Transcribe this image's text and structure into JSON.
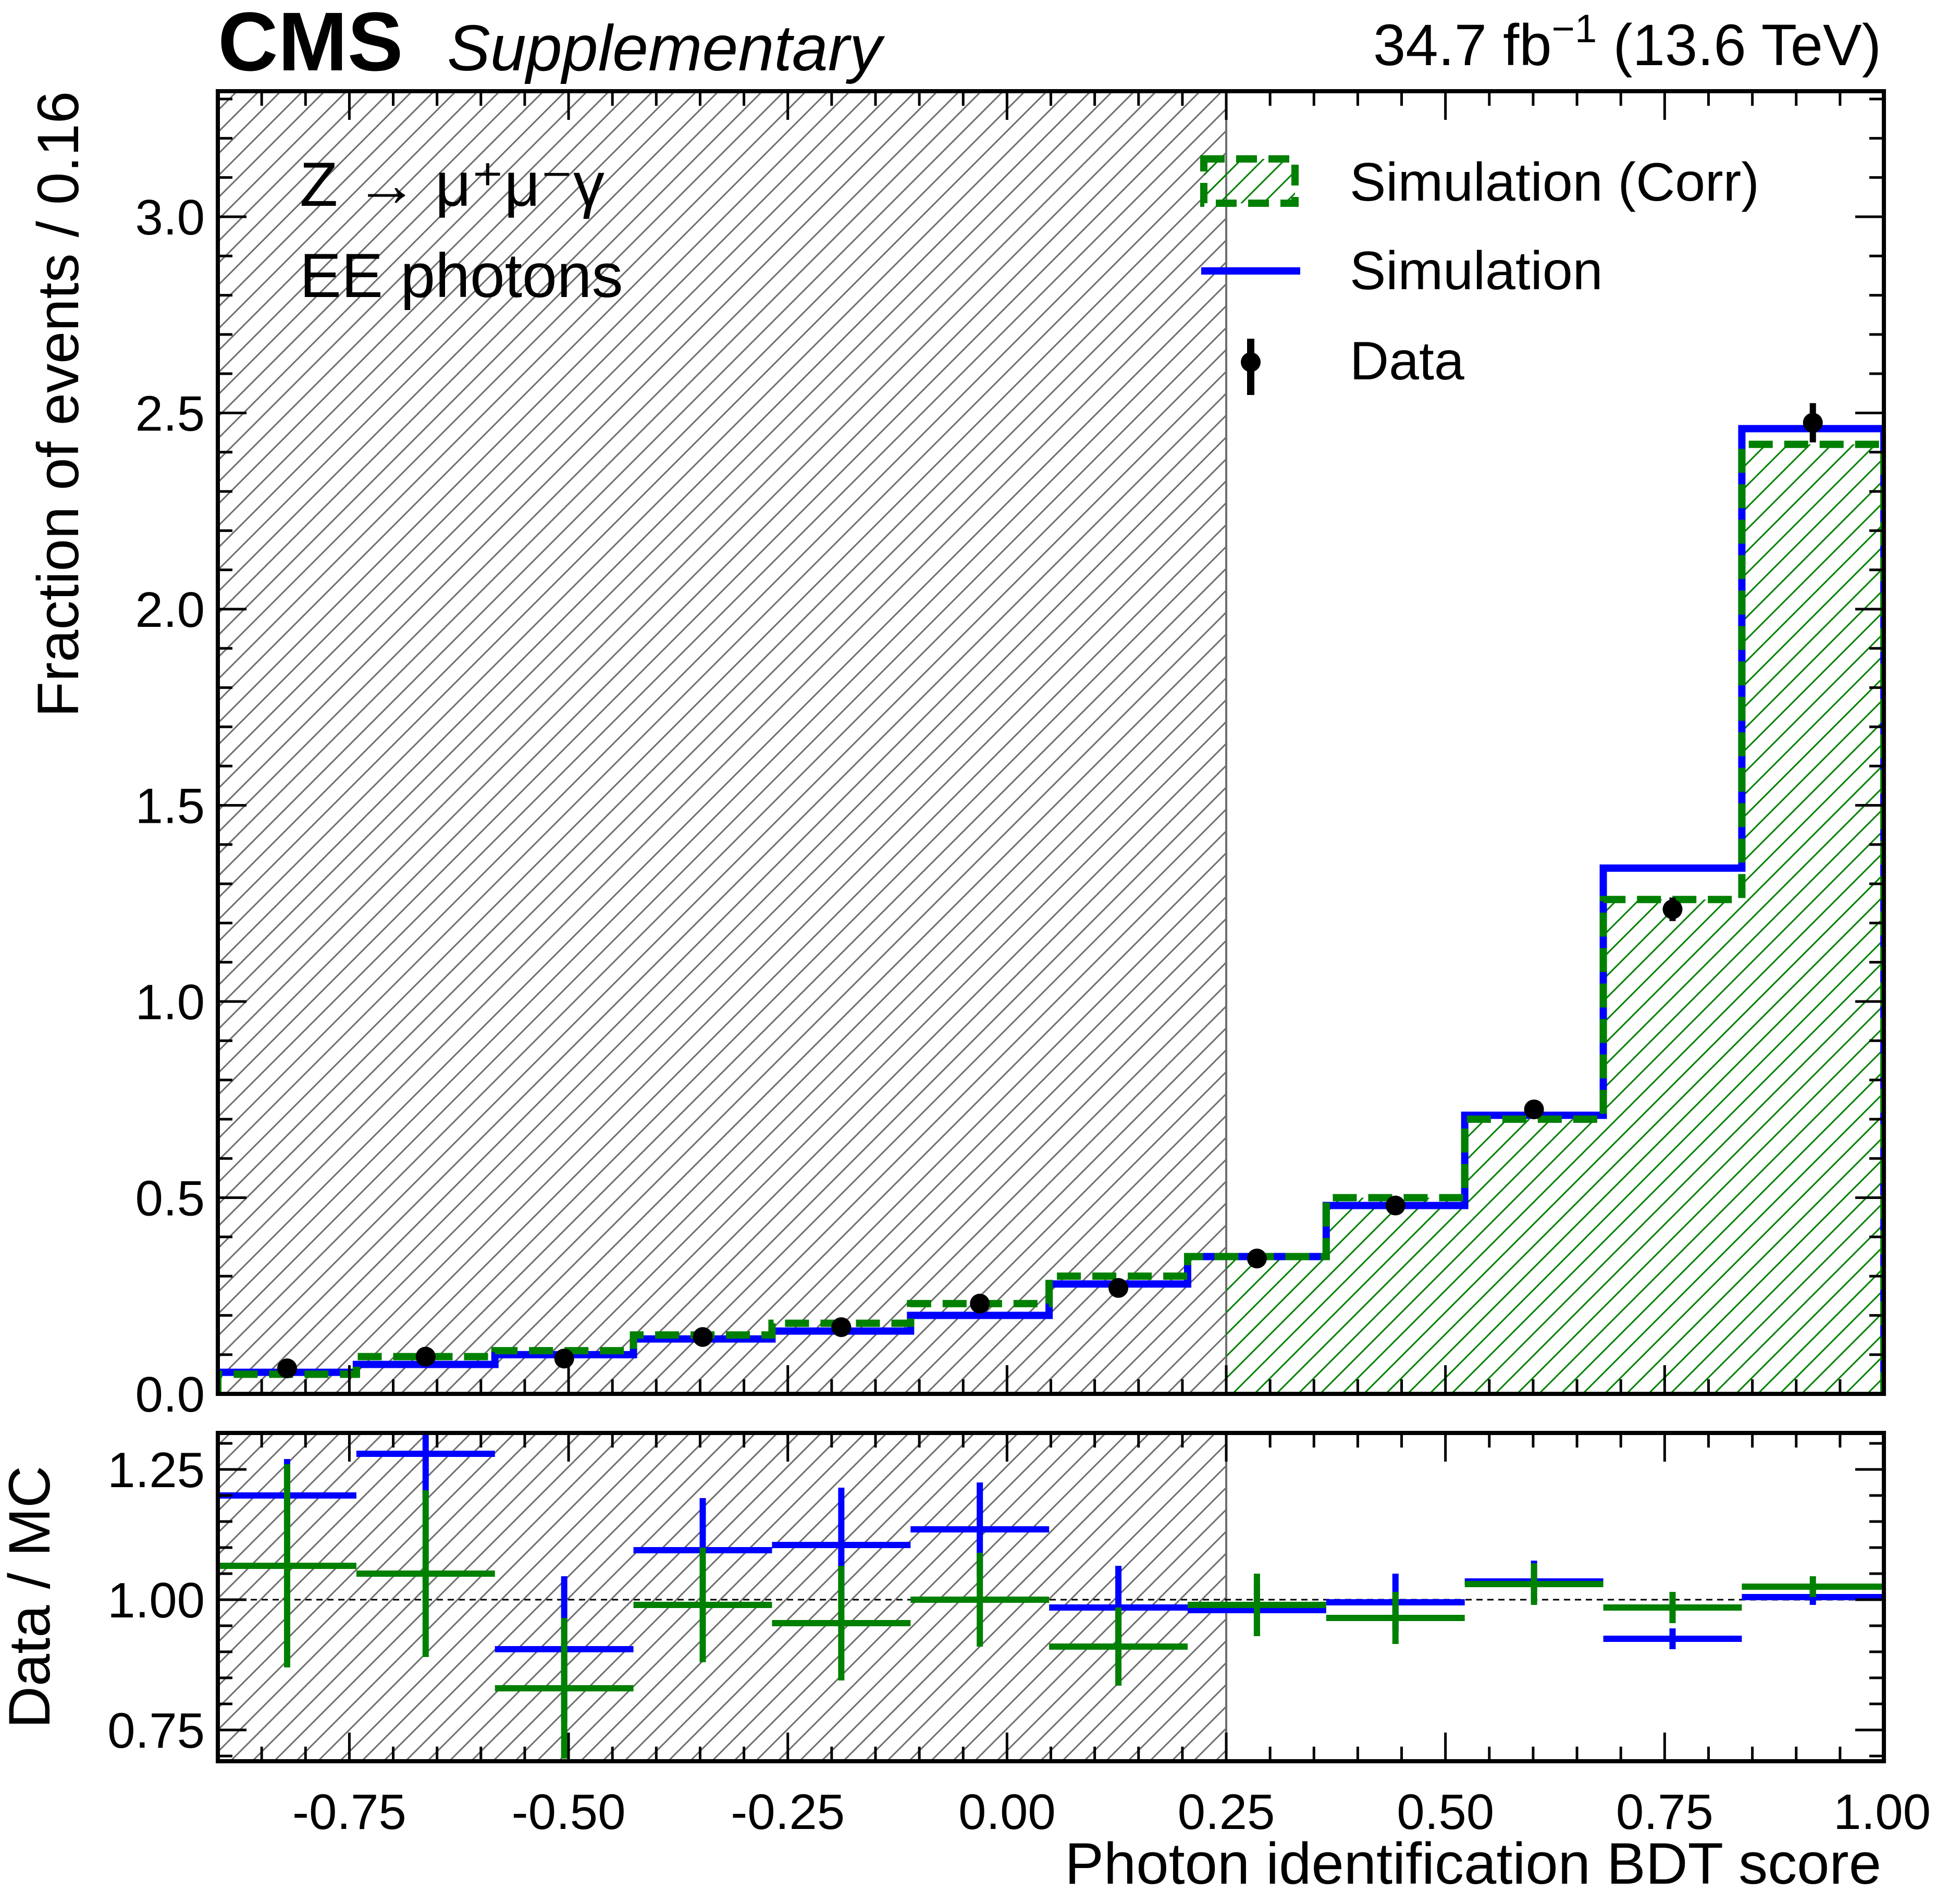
{
  "header": {
    "cms": "CMS",
    "supplementary": "Supplementary",
    "lumi_prefix": "34.7 fb",
    "lumi_sup": "−1",
    "lumi_suffix": " (13.6 TeV)"
  },
  "annotation": {
    "process": "Z → μ⁺μ⁻γ",
    "category": "EE photons"
  },
  "legend": {
    "items": [
      "Simulation (Corr)",
      "Simulation",
      "Data"
    ]
  },
  "colors": {
    "corr": "#008000",
    "sim": "#0000ff",
    "data": "#000000",
    "hatch_excluded": "#6e6e6e"
  },
  "chart_data": [
    {
      "type": "bar",
      "panel": "main",
      "xlabel": "Photon identification BDT score",
      "ylabel": "Fraction of events / 0.16",
      "xlim": [
        -0.9,
        1.0
      ],
      "ylim": [
        0.0,
        3.32
      ],
      "excluded_region": [
        -0.9,
        0.25
      ],
      "bin_edges": [
        -0.9,
        -0.742,
        -0.584,
        -0.426,
        -0.268,
        -0.11,
        0.048,
        0.206,
        0.364,
        0.522,
        0.68,
        0.838,
        1.0
      ],
      "series": [
        {
          "name": "Simulation (Corr)",
          "style": "step-dashed-hatched",
          "values": [
            0.05,
            0.095,
            0.11,
            0.15,
            0.18,
            0.23,
            0.3,
            0.35,
            0.5,
            0.7,
            1.26,
            2.42
          ]
        },
        {
          "name": "Simulation",
          "style": "step",
          "values": [
            0.055,
            0.075,
            0.1,
            0.14,
            0.16,
            0.2,
            0.28,
            0.35,
            0.48,
            0.71,
            1.34,
            2.46
          ]
        },
        {
          "name": "Data",
          "style": "points",
          "values": [
            0.065,
            0.095,
            0.09,
            0.145,
            0.17,
            0.23,
            0.27,
            0.345,
            0.48,
            0.725,
            1.235,
            2.475
          ],
          "errors": [
            0.005,
            0.006,
            0.007,
            0.008,
            0.009,
            0.01,
            0.012,
            0.012,
            0.014,
            0.02,
            0.03,
            0.05
          ]
        }
      ],
      "yticks": [
        "0.0",
        "0.5",
        "1.0",
        "1.5",
        "2.0",
        "2.5",
        "3.0"
      ]
    },
    {
      "type": "scatter",
      "panel": "ratio",
      "xlabel": "Photon identification BDT score",
      "ylabel": "Data / MC",
      "xlim": [
        -0.9,
        1.0
      ],
      "ylim": [
        0.69,
        1.32
      ],
      "reference_line": 1.0,
      "bin_edges": [
        -0.9,
        -0.742,
        -0.584,
        -0.426,
        -0.268,
        -0.11,
        0.048,
        0.206,
        0.364,
        0.522,
        0.68,
        0.838,
        1.0
      ],
      "series": [
        {
          "name": "Data / Simulation",
          "color": "sim",
          "values": [
            1.2,
            1.28,
            0.905,
            1.095,
            1.105,
            1.135,
            0.985,
            0.98,
            0.995,
            1.035,
            0.925,
            1.005
          ],
          "errors": [
            0.07,
            0.085,
            0.14,
            0.1,
            0.11,
            0.09,
            0.08,
            0.05,
            0.055,
            0.04,
            0.02,
            0.015
          ]
        },
        {
          "name": "Data / Simulation (Corr)",
          "color": "corr",
          "values": [
            1.065,
            1.05,
            0.83,
            0.99,
            0.955,
            1.0,
            0.91,
            0.99,
            0.965,
            1.03,
            0.985,
            1.025
          ],
          "errors": [
            0.195,
            0.16,
            0.135,
            0.11,
            0.11,
            0.09,
            0.075,
            0.06,
            0.05,
            0.04,
            0.03,
            0.02
          ]
        }
      ],
      "yticks": [
        "0.75",
        "1.00",
        "1.25"
      ]
    }
  ],
  "xticks": [
    "-0.75",
    "-0.50",
    "-0.25",
    "0.00",
    "0.25",
    "0.50",
    "0.75",
    "1.00"
  ]
}
